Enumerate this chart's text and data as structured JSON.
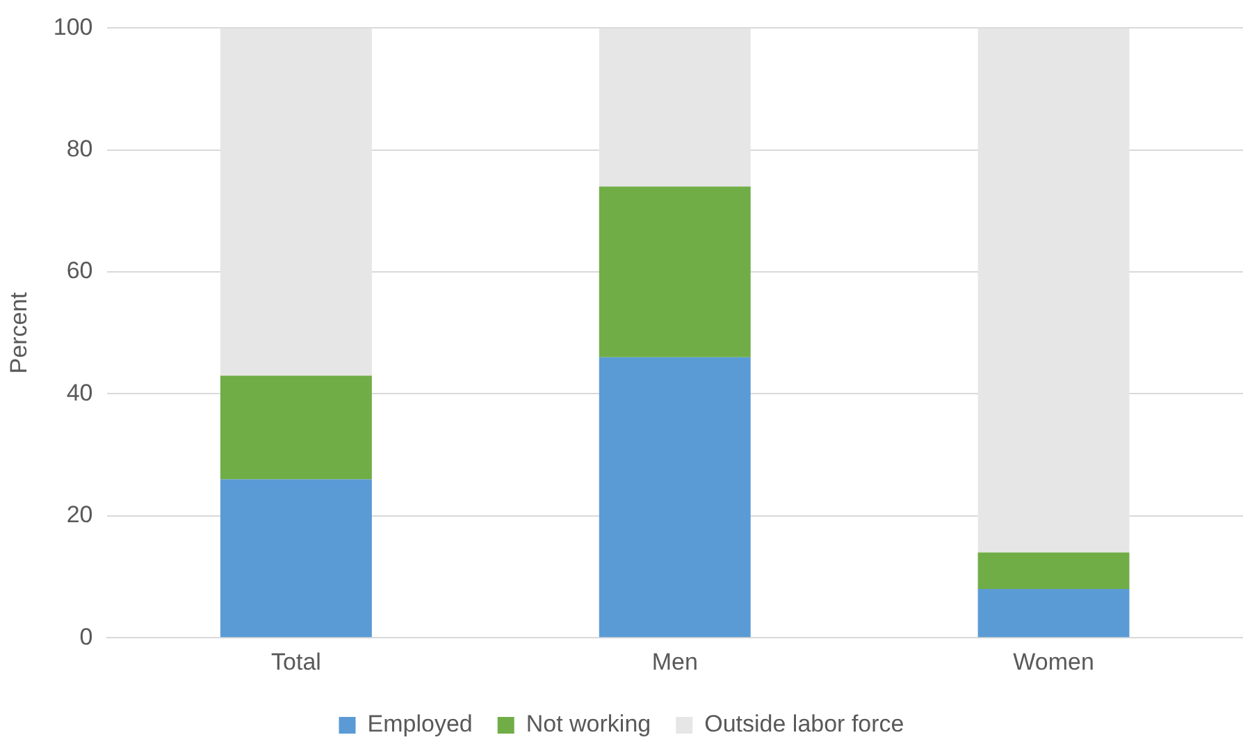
{
  "chart_data": {
    "type": "bar",
    "stacked": true,
    "ylabel": "Percent",
    "categories": [
      "Total",
      "Men",
      "Women"
    ],
    "series": [
      {
        "name": "Employed",
        "color": "#5b9bd5",
        "values": [
          26,
          46,
          8
        ]
      },
      {
        "name": "Not working",
        "color": "#70ad47",
        "values": [
          17,
          28,
          6
        ]
      },
      {
        "name": "Outside labor force",
        "color": "#e7e6e6",
        "values": [
          57,
          26,
          86
        ]
      }
    ],
    "ylim": [
      0,
      100
    ],
    "yticks": [
      0,
      20,
      40,
      60,
      80,
      100
    ],
    "grid": "y",
    "legend": "bottom"
  }
}
